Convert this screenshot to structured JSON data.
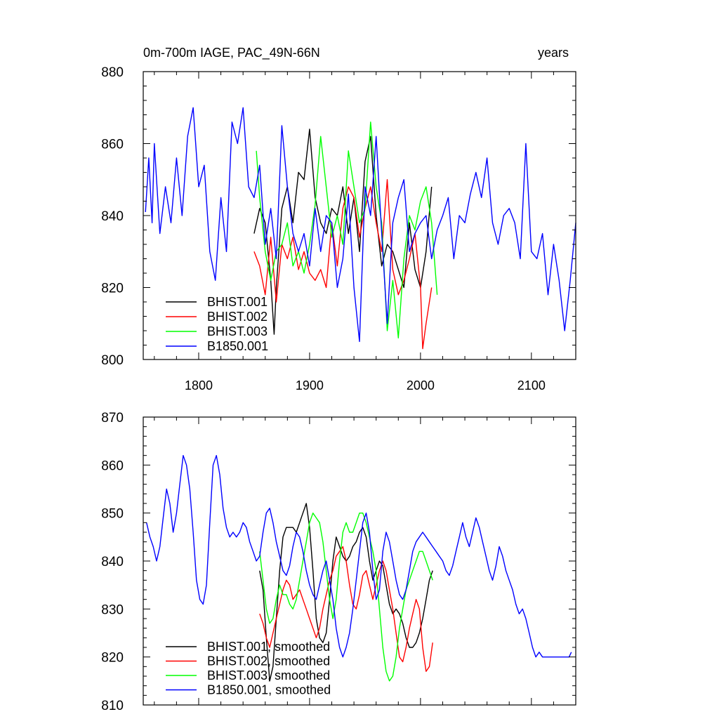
{
  "header": {
    "title_left": "0m-700m IAGE, PAC_49N-66N",
    "title_right": "years"
  },
  "chart_data": [
    {
      "type": "line",
      "title": "0m-700m IAGE, PAC_49N-66N",
      "xlim": [
        1750,
        2140
      ],
      "ylim": [
        800,
        880
      ],
      "xticks": [
        1800,
        1900,
        2000,
        2100
      ],
      "yticks": [
        800,
        820,
        840,
        860,
        880
      ],
      "grid": false,
      "legend_position": "bottom-left",
      "series": [
        {
          "name": "BHIST.001",
          "color": "#000000",
          "x": [
            1850,
            1855,
            1860,
            1865,
            1868,
            1870,
            1875,
            1880,
            1885,
            1890,
            1895,
            1900,
            1905,
            1910,
            1915,
            1920,
            1925,
            1930,
            1935,
            1940,
            1945,
            1950,
            1955,
            1960,
            1965,
            1970,
            1975,
            1980,
            1985,
            1990,
            1995,
            2000,
            2005,
            2010
          ],
          "y": [
            835,
            842,
            838,
            822,
            807,
            820,
            842,
            848,
            838,
            852,
            850,
            864,
            845,
            838,
            835,
            842,
            840,
            848,
            835,
            845,
            830,
            855,
            862,
            840,
            826,
            832,
            830,
            825,
            820,
            838,
            825,
            820,
            830,
            848
          ]
        },
        {
          "name": "BHIST.002",
          "color": "#ff0000",
          "x": [
            1850,
            1855,
            1860,
            1865,
            1870,
            1875,
            1880,
            1885,
            1890,
            1895,
            1900,
            1905,
            1910,
            1915,
            1920,
            1925,
            1930,
            1935,
            1940,
            1945,
            1950,
            1955,
            1960,
            1965,
            1970,
            1975,
            1980,
            1985,
            1990,
            1995,
            2000,
            2002,
            2005,
            2010
          ],
          "y": [
            830,
            826,
            818,
            834,
            816,
            832,
            828,
            834,
            825,
            830,
            824,
            822,
            825,
            820,
            838,
            826,
            842,
            848,
            845,
            834,
            842,
            848,
            838,
            830,
            850,
            825,
            818,
            822,
            828,
            835,
            820,
            803,
            810,
            820
          ]
        },
        {
          "name": "BHIST.003",
          "color": "#00ff00",
          "x": [
            1852,
            1855,
            1860,
            1865,
            1870,
            1875,
            1880,
            1885,
            1890,
            1895,
            1900,
            1905,
            1910,
            1915,
            1920,
            1925,
            1930,
            1935,
            1940,
            1945,
            1950,
            1955,
            1960,
            1965,
            1970,
            1975,
            1980,
            1985,
            1990,
            1995,
            2000,
            2005,
            2010,
            2015
          ],
          "y": [
            858,
            845,
            830,
            822,
            830,
            832,
            838,
            826,
            830,
            824,
            832,
            843,
            862,
            848,
            834,
            840,
            832,
            858,
            848,
            838,
            842,
            866,
            848,
            838,
            808,
            822,
            806,
            828,
            840,
            836,
            844,
            848,
            838,
            818
          ]
        },
        {
          "name": "B1850.001",
          "color": "#0000ff",
          "x": [
            1752,
            1755,
            1758,
            1760,
            1765,
            1770,
            1775,
            1780,
            1785,
            1790,
            1795,
            1800,
            1805,
            1810,
            1815,
            1820,
            1825,
            1830,
            1835,
            1840,
            1845,
            1850,
            1855,
            1860,
            1865,
            1870,
            1875,
            1880,
            1885,
            1890,
            1895,
            1900,
            1905,
            1910,
            1915,
            1920,
            1925,
            1930,
            1935,
            1940,
            1945,
            1950,
            1955,
            1960,
            1965,
            1970,
            1975,
            1980,
            1985,
            1990,
            1995,
            2000,
            2005,
            2010,
            2015,
            2020,
            2025,
            2030,
            2035,
            2040,
            2045,
            2050,
            2055,
            2060,
            2065,
            2070,
            2075,
            2080,
            2085,
            2090,
            2095,
            2100,
            2105,
            2110,
            2115,
            2120,
            2125,
            2130,
            2135,
            2140
          ],
          "y": [
            841,
            856,
            838,
            860,
            835,
            848,
            838,
            856,
            840,
            862,
            870,
            848,
            854,
            830,
            822,
            845,
            830,
            866,
            860,
            870,
            848,
            845,
            854,
            832,
            842,
            828,
            865,
            848,
            835,
            830,
            835,
            826,
            842,
            830,
            840,
            838,
            820,
            828,
            846,
            820,
            805,
            848,
            840,
            862,
            835,
            810,
            838,
            845,
            850,
            830,
            835,
            838,
            840,
            828,
            836,
            840,
            845,
            828,
            840,
            838,
            846,
            852,
            845,
            856,
            838,
            832,
            840,
            842,
            838,
            828,
            860,
            830,
            828,
            835,
            818,
            832,
            822,
            808,
            822,
            838
          ]
        }
      ]
    },
    {
      "type": "line",
      "xlim": [
        1750,
        2140
      ],
      "ylim": [
        810,
        870
      ],
      "xticks": [
        1800,
        1900,
        2000,
        2100
      ],
      "yticks": [
        810,
        820,
        830,
        840,
        850,
        860,
        870
      ],
      "grid": false,
      "legend_position": "bottom-left",
      "series": [
        {
          "name": "BHIST.001, smoothed",
          "color": "#000000",
          "x": [
            1855,
            1858,
            1861,
            1864,
            1867,
            1870,
            1873,
            1876,
            1879,
            1882,
            1885,
            1888,
            1891,
            1894,
            1897,
            1900,
            1903,
            1906,
            1909,
            1912,
            1915,
            1918,
            1921,
            1924,
            1927,
            1930,
            1933,
            1936,
            1939,
            1942,
            1945,
            1948,
            1951,
            1954,
            1957,
            1960,
            1963,
            1966,
            1969,
            1972,
            1975,
            1978,
            1981,
            1984,
            1987,
            1990,
            1993,
            1996,
            1999,
            2002,
            2005,
            2008,
            2011
          ],
          "y": [
            838,
            834,
            824,
            815,
            818,
            828,
            838,
            845,
            847,
            847,
            847,
            846,
            848,
            850,
            852,
            847,
            838,
            828,
            824,
            823,
            825,
            832,
            840,
            845,
            843,
            841,
            840,
            841,
            843,
            844,
            846,
            847,
            845,
            840,
            836,
            838,
            840,
            839,
            835,
            831,
            829,
            830,
            829,
            827,
            824,
            822,
            822,
            823,
            825,
            828,
            832,
            836,
            838
          ]
        },
        {
          "name": "BHIST.002, smoothed",
          "color": "#ff0000",
          "x": [
            1855,
            1858,
            1861,
            1864,
            1867,
            1870,
            1873,
            1876,
            1879,
            1882,
            1885,
            1888,
            1891,
            1894,
            1897,
            1900,
            1903,
            1906,
            1909,
            1912,
            1915,
            1918,
            1921,
            1924,
            1927,
            1930,
            1933,
            1936,
            1939,
            1942,
            1945,
            1948,
            1951,
            1954,
            1957,
            1960,
            1963,
            1966,
            1969,
            1972,
            1975,
            1978,
            1981,
            1984,
            1987,
            1990,
            1993,
            1996,
            1999,
            2002,
            2005,
            2008,
            2011
          ],
          "y": [
            829,
            827,
            824,
            822,
            825,
            828,
            831,
            834,
            836,
            835,
            832,
            833,
            834,
            832,
            830,
            828,
            826,
            824,
            826,
            830,
            833,
            836,
            838,
            841,
            842,
            843,
            840,
            835,
            831,
            830,
            833,
            837,
            838,
            835,
            832,
            835,
            838,
            840,
            838,
            834,
            830,
            825,
            820,
            819,
            822,
            826,
            829,
            832,
            830,
            822,
            817,
            818,
            823
          ]
        },
        {
          "name": "BHIST.003, smoothed",
          "color": "#00ff00",
          "x": [
            1855,
            1858,
            1861,
            1864,
            1867,
            1870,
            1873,
            1876,
            1879,
            1882,
            1885,
            1888,
            1891,
            1894,
            1897,
            1900,
            1903,
            1906,
            1909,
            1912,
            1915,
            1918,
            1921,
            1924,
            1927,
            1930,
            1933,
            1936,
            1939,
            1942,
            1945,
            1948,
            1951,
            1954,
            1957,
            1960,
            1963,
            1966,
            1969,
            1972,
            1975,
            1978,
            1981,
            1984,
            1987,
            1990,
            1993,
            1996,
            1999,
            2002,
            2005,
            2008,
            2011
          ],
          "y": [
            842,
            836,
            830,
            827,
            828,
            832,
            835,
            833,
            833,
            831,
            830,
            832,
            836,
            840,
            844,
            848,
            850,
            849,
            848,
            844,
            838,
            832,
            828,
            832,
            840,
            846,
            848,
            846,
            846,
            848,
            850,
            850,
            848,
            845,
            842,
            838,
            830,
            822,
            817,
            815,
            816,
            820,
            826,
            830,
            834,
            836,
            838,
            840,
            842,
            842,
            840,
            838,
            836
          ]
        },
        {
          "name": "B1850.001, smoothed",
          "color": "#0000ff",
          "x": [
            1753,
            1756,
            1759,
            1762,
            1765,
            1768,
            1771,
            1774,
            1777,
            1780,
            1783,
            1786,
            1789,
            1792,
            1795,
            1798,
            1801,
            1804,
            1807,
            1810,
            1813,
            1816,
            1819,
            1822,
            1825,
            1828,
            1831,
            1834,
            1837,
            1840,
            1843,
            1846,
            1849,
            1852,
            1855,
            1858,
            1861,
            1864,
            1867,
            1870,
            1873,
            1876,
            1879,
            1882,
            1885,
            1888,
            1891,
            1894,
            1897,
            1900,
            1903,
            1906,
            1909,
            1912,
            1915,
            1918,
            1921,
            1924,
            1927,
            1930,
            1933,
            1936,
            1939,
            1942,
            1945,
            1948,
            1951,
            1954,
            1957,
            1960,
            1963,
            1966,
            1969,
            1972,
            1975,
            1978,
            1981,
            1984,
            1987,
            1990,
            1993,
            1996,
            1999,
            2002,
            2005,
            2008,
            2011,
            2014,
            2017,
            2020,
            2023,
            2026,
            2029,
            2032,
            2035,
            2038,
            2041,
            2044,
            2047,
            2050,
            2053,
            2056,
            2059,
            2062,
            2065,
            2068,
            2071,
            2074,
            2077,
            2080,
            2083,
            2086,
            2089,
            2092,
            2095,
            2098,
            2101,
            2104,
            2107,
            2110,
            2113,
            2116,
            2119,
            2122,
            2125,
            2128,
            2131,
            2134,
            2136
          ],
          "y": [
            848,
            845,
            843,
            840,
            843,
            849,
            855,
            852,
            846,
            850,
            856,
            862,
            860,
            855,
            846,
            836,
            832,
            831,
            835,
            848,
            860,
            862,
            858,
            851,
            847,
            845,
            846,
            845,
            846,
            848,
            847,
            844,
            842,
            840,
            841,
            846,
            850,
            851,
            848,
            844,
            841,
            838,
            837,
            839,
            843,
            846,
            845,
            842,
            838,
            835,
            833,
            832,
            835,
            838,
            840,
            836,
            832,
            826,
            822,
            820,
            822,
            825,
            830,
            836,
            842,
            848,
            850,
            846,
            838,
            832,
            834,
            842,
            846,
            844,
            840,
            836,
            833,
            832,
            834,
            838,
            842,
            844,
            845,
            846,
            845,
            844,
            843,
            842,
            841,
            840,
            838,
            837,
            839,
            842,
            845,
            848,
            845,
            843,
            846,
            849,
            847,
            844,
            841,
            838,
            836,
            839,
            843,
            841,
            838,
            836,
            834,
            831,
            829,
            830,
            828,
            825,
            822,
            820,
            821,
            820,
            820,
            820,
            820,
            820,
            820,
            820,
            820,
            820,
            821
          ]
        }
      ]
    }
  ]
}
